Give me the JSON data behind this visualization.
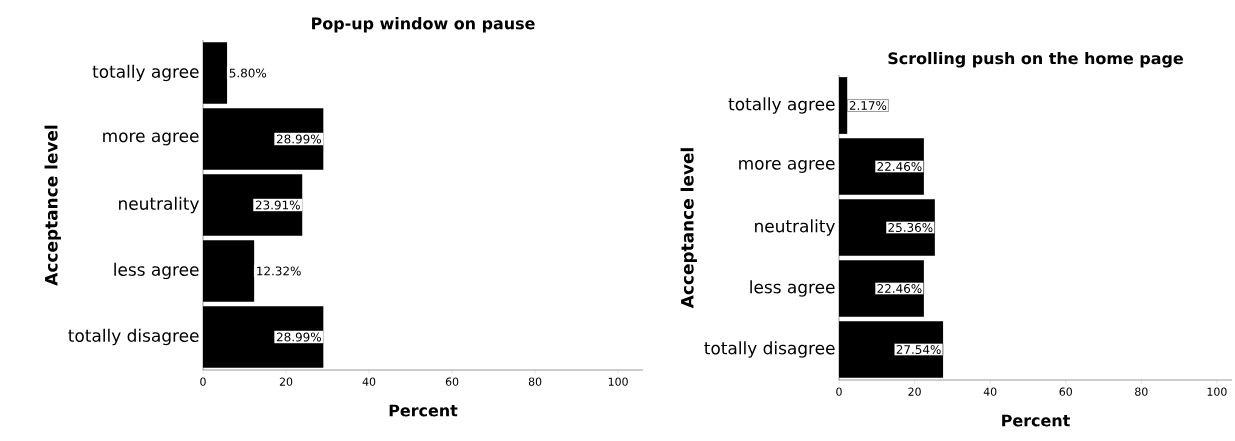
{
  "chart_data": [
    {
      "type": "bar",
      "orientation": "horizontal",
      "title": "Pop-up window on pause",
      "xlabel": "Percent",
      "ylabel": "Acceptance level",
      "categories": [
        "totally agree",
        "more agree",
        "neutrality",
        "less agree",
        "totally disagree"
      ],
      "values": [
        5.8,
        28.99,
        23.91,
        12.32,
        28.99
      ],
      "value_labels": [
        "5.80%",
        "28.99%",
        "23.91%",
        "12.32%",
        "28.99%"
      ],
      "color": "#000000",
      "xlim": [
        0,
        106
      ],
      "xticks": [
        0,
        20,
        40,
        60,
        80,
        100
      ]
    },
    {
      "type": "bar",
      "orientation": "horizontal",
      "title": "Scrolling push on the home page",
      "xlabel": "Percent",
      "ylabel": "Acceptance level",
      "categories": [
        "totally agree",
        "more agree",
        "neutrality",
        "less agree",
        "totally disagree"
      ],
      "values": [
        2.17,
        22.46,
        25.36,
        22.46,
        27.54
      ],
      "value_labels": [
        "2.17%",
        "22.46%",
        "25.36%",
        "22.46%",
        "27.54%"
      ],
      "color": "#000000",
      "xlim": [
        0,
        104
      ],
      "xticks": [
        0,
        20,
        40,
        60,
        80,
        100
      ]
    }
  ]
}
